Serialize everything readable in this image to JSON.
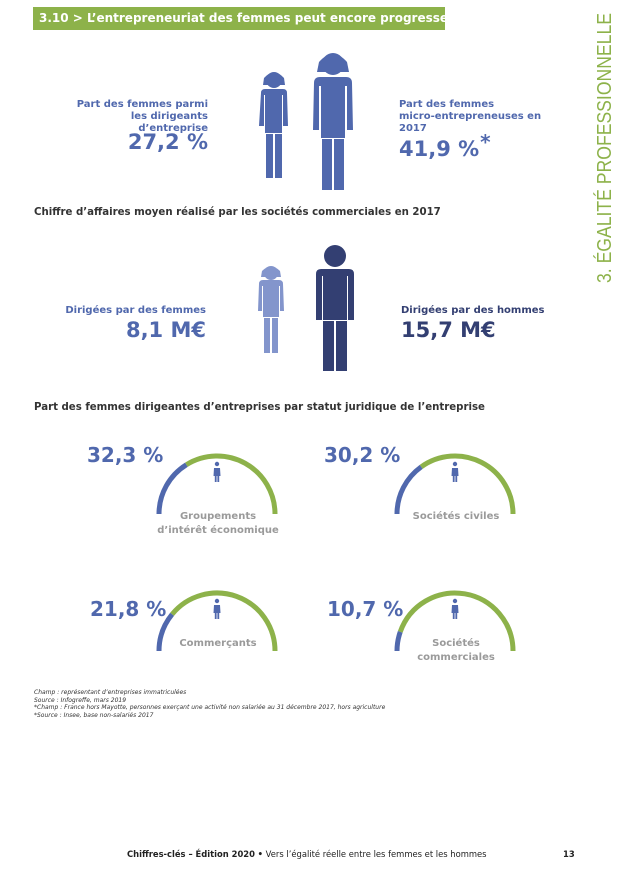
{
  "header": {
    "title": "3.10 > L’entrepreneuriat des femmes peut encore progresser",
    "side_title": "3. ÉGALITÉ PROFESSIONNELLE"
  },
  "share_section": {
    "left": {
      "line1": "Part des femmes parmi",
      "line2": "les dirigeants d’entreprise",
      "value": "27,2 %"
    },
    "right": {
      "line1": "Part des femmes",
      "line2": "micro-entrepreneuses en 2017",
      "value": "41,9 %",
      "marker": "*"
    }
  },
  "revenue_section": {
    "heading": "Chiffre d’affaires moyen réalisé par les sociétés commerciales en 2017",
    "left": {
      "label": "Dirigées par des femmes",
      "value": "8,1 M€"
    },
    "right": {
      "label": "Dirigées par des hommes",
      "value": "15,7 M€"
    }
  },
  "status_section": {
    "heading": "Part des femmes dirigeantes d’entreprises par statut juridique de l’entreprise"
  },
  "chart_data": {
    "type": "gauge",
    "categories": [
      "Groupements d’intérêt économique",
      "Sociétés civiles",
      "Commerçants",
      "Sociétés commerciales"
    ],
    "values": [
      32.3,
      30.2,
      21.8,
      10.7
    ],
    "labels": [
      "32,3 %",
      "30,2 %",
      "21,8 %",
      "10,7 %"
    ],
    "name_lines": [
      [
        "Groupements",
        "d’intérêt économique"
      ],
      [
        "Sociétés civiles"
      ],
      [
        "Commerçants"
      ],
      [
        "Sociétés",
        "commerciales"
      ]
    ],
    "ylim": [
      0,
      100
    ],
    "colors": {
      "women": "#5068ad",
      "rest": "#8db24a"
    }
  },
  "notes": [
    "Champ : représentant d’entreprises immatriculées",
    "Source : Infogreffe, mars 2019",
    "*Champ : France hors Mayotte, personnes exerçant une activité non salariée au 31 décembre 2017, hors agriculture",
    "*Source : Insee, base non-salariés 2017"
  ],
  "footer": {
    "edition": "Chiffres-clés – Édition 2020",
    "separator": "•",
    "subtitle": "Vers l’égalité réelle entre les femmes et les hommes",
    "page": "13"
  },
  "colors": {
    "green": "#8db24a",
    "blue": "#5068ad",
    "navy": "#333f72",
    "light_blue": "#8395cc"
  },
  "icons": [
    "woman-icon",
    "man-icon"
  ]
}
